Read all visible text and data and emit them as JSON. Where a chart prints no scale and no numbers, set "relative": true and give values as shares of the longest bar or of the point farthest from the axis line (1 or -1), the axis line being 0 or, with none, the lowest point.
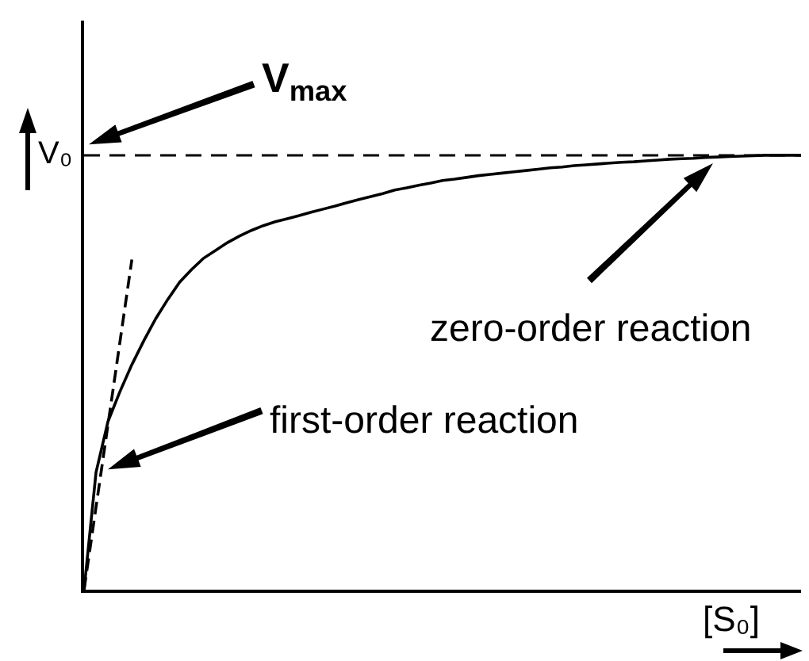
{
  "chart_data": {
    "type": "line",
    "relative": true,
    "xlabel": "[S₀]",
    "ylabel": "V₀",
    "categories": [
      null,
      null,
      null,
      null,
      null,
      null,
      null,
      null,
      null,
      null,
      null,
      null,
      null,
      null,
      null,
      null,
      null,
      null,
      null,
      null,
      null,
      null,
      null,
      null,
      null,
      null,
      null,
      null,
      null,
      null,
      null,
      null,
      null,
      null,
      null,
      null,
      null,
      null,
      null,
      null,
      null,
      null,
      null,
      null,
      null,
      null,
      null,
      null,
      null,
      null,
      null,
      null,
      null,
      null,
      null,
      null,
      null,
      null,
      null,
      null,
      null
    ],
    "series": [
      {
        "color": "#000000",
        "values": [
          0,
          0.27,
          0.387,
          0.456,
          0.518,
          0.573,
          0.624,
          0.668,
          0.708,
          0.737,
          0.763,
          0.781,
          0.799,
          0.814,
          0.827,
          0.838,
          0.847,
          0.854,
          0.861,
          0.869,
          0.876,
          0.883,
          0.891,
          0.898,
          0.905,
          0.912,
          0.92,
          0.925,
          0.931,
          0.936,
          0.942,
          0.945,
          0.949,
          0.953,
          0.956,
          0.959,
          0.962,
          0.965,
          0.968,
          0.971,
          0.973,
          0.976,
          0.978,
          0.98,
          0.982,
          0.984,
          0.985,
          0.987,
          0.989,
          0.991,
          0.992,
          0.993,
          0.995,
          0.996,
          0.997,
          0.998,
          0.999,
          1,
          1,
          1,
          1
        ]
      },
      {
        "color": "#000000",
        "line_style": "dashed",
        "values": [
          0,
          0.19,
          0.38,
          0.57,
          0.76,
          null,
          null,
          null,
          null,
          null,
          null,
          null,
          null,
          null,
          null,
          null,
          null,
          null,
          null,
          null,
          null,
          null,
          null,
          null,
          null,
          null,
          null,
          null,
          null,
          null,
          null,
          null,
          null,
          null,
          null,
          null,
          null,
          null,
          null,
          null,
          null,
          null,
          null,
          null,
          null,
          null,
          null,
          null,
          null,
          null,
          null,
          null,
          null,
          null,
          null,
          null,
          null,
          null,
          null,
          null,
          null
        ]
      }
    ],
    "ref_lines": [
      {
        "axis": "y",
        "value": 1,
        "color": "#000000",
        "line_style": "dashed"
      }
    ],
    "annotations": [
      "V$_{max}$",
      "zero-order reaction",
      "first-order reaction"
    ]
  }
}
